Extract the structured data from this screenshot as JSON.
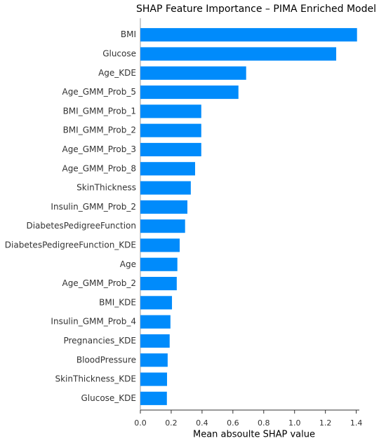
{
  "chart_data": {
    "type": "barh",
    "title": "SHAP Feature Importance – PIMA Enriched Model",
    "xlabel": "Mean absoulte SHAP value",
    "categories": [
      "BMI",
      "Glucose",
      "Age_KDE",
      "Age_GMM_Prob_5",
      "BMI_GMM_Prob_1",
      "BMI_GMM_Prob_2",
      "Age_GMM_Prob_3",
      "Age_GMM_Prob_8",
      "SkinThickness",
      "Insulin_GMM_Prob_2",
      "DiabetesPedigreeFunction",
      "DiabetesPedigreeFunction_KDE",
      "Age",
      "Age_GMM_Prob_2",
      "BMI_KDE",
      "Insulin_GMM_Prob_4",
      "Pregnancies_KDE",
      "BloodPressure",
      "SkinThickness_KDE",
      "Glucose_KDE"
    ],
    "values": [
      1.405,
      1.27,
      0.686,
      0.636,
      0.395,
      0.395,
      0.395,
      0.355,
      0.327,
      0.305,
      0.29,
      0.255,
      0.24,
      0.236,
      0.205,
      0.195,
      0.19,
      0.177,
      0.173,
      0.172
    ],
    "color": "#008bfb",
    "xlim": [
      0,
      1.42
    ],
    "xticks": [
      {
        "value": 0,
        "label": "0.0"
      },
      0.2,
      0.4,
      0.6,
      0.8,
      {
        "value": 1,
        "label": "1.0"
      },
      1.2,
      1.4
    ]
  }
}
